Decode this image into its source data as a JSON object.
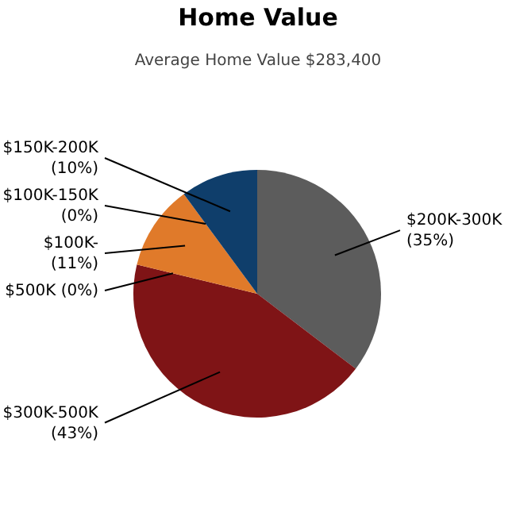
{
  "chart_data": {
    "type": "pie",
    "title": "Home Value",
    "subtitle": "Average Home Value  $283,400",
    "categories": [
      "$200K-300K",
      "$300K-500K",
      "$500K",
      "$100K-",
      "$100K-150K",
      "$150K-200K"
    ],
    "values": [
      35,
      43,
      0,
      11,
      0,
      10
    ],
    "value_labels": [
      "(35%)",
      "(43%)",
      "(0%)",
      "(11%)",
      "(0%)",
      "(10%)"
    ],
    "colors": [
      "#5c5c5c",
      "#7f1416",
      "#3f6f2a",
      "#e07a2a",
      "#c9a227",
      "#0f3e6b"
    ]
  }
}
